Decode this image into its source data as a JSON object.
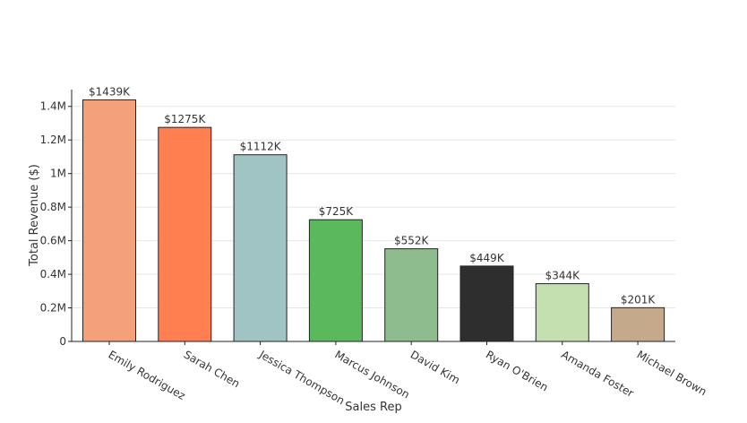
{
  "chart_data": {
    "type": "bar",
    "title": "",
    "xlabel": "Sales Rep",
    "ylabel": "Total Revenue ($)",
    "ylim": [
      0,
      1500000
    ],
    "y_ticks": [
      0,
      200000,
      400000,
      600000,
      800000,
      1000000,
      1200000,
      1400000
    ],
    "y_tick_labels": [
      "0",
      "0.2M",
      "0.4M",
      "0.6M",
      "0.8M",
      "1M",
      "1.2M",
      "1.4M"
    ],
    "grid": true,
    "categories": [
      "Emily Rodriguez",
      "Sarah Chen",
      "Jessica Thompson",
      "Marcus Johnson",
      "David Kim",
      "Ryan O'Brien",
      "Amanda Foster",
      "Michael Brown"
    ],
    "values": [
      1439000,
      1275000,
      1112000,
      725000,
      552000,
      449000,
      344000,
      201000
    ],
    "data_labels": [
      "$1439K",
      "$1275K",
      "$1112K",
      "$725K",
      "$552K",
      "$449K",
      "$344K",
      "$201K"
    ],
    "colors": [
      "#f4a07a",
      "#ff7f50",
      "#a0c4c4",
      "#5cb85c",
      "#8fbc8f",
      "#2e2e2e",
      "#c5e0b0",
      "#c4aa8a"
    ]
  }
}
